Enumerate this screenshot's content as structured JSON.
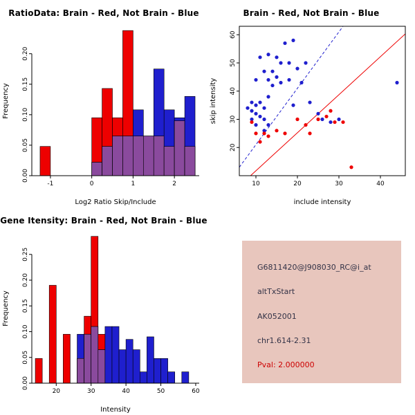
{
  "figure": {
    "background": "#ffffff"
  },
  "colors": {
    "red": "#ee0000",
    "blue": "#1f1fce",
    "overlap": "#8a4a9d",
    "axis": "#000000"
  },
  "chart_data": [
    {
      "id": "ratio-hist",
      "type": "bar",
      "subtype": "overlaid-histogram",
      "title": "RatioData: Brain - Red, Not Brain - Blue",
      "xlabel": "Log2 Ratio Skip/Include",
      "ylabel": "Frequency",
      "xlim": [
        -1.45,
        2.6
      ],
      "ylim": [
        0,
        0.245
      ],
      "bin_width": 0.25,
      "xticks": {
        "values": [
          -1,
          0,
          1,
          2
        ],
        "labels": [
          "-1",
          "0",
          "1",
          "2"
        ]
      },
      "yticks": {
        "values": [
          0,
          0.05,
          0.1,
          0.15,
          0.2
        ],
        "labels": [
          "0.00",
          "0.05",
          "0.10",
          "0.15",
          "0.20"
        ]
      },
      "legend": {
        "red": "Brain",
        "blue": "Not Brain"
      },
      "red_bins": [
        [
          -1.25,
          0.048
        ],
        [
          0,
          0.095
        ],
        [
          0.25,
          0.143
        ],
        [
          0.5,
          0.095
        ],
        [
          0.75,
          0.238
        ],
        [
          1,
          0.065
        ],
        [
          1.25,
          0.065
        ],
        [
          1.5,
          0.065
        ],
        [
          1.75,
          0.048
        ],
        [
          2,
          0.09
        ],
        [
          2.25,
          0.048
        ]
      ],
      "blue_bins": [
        [
          0,
          0.022
        ],
        [
          0.25,
          0.048
        ],
        [
          0.5,
          0.065
        ],
        [
          0.75,
          0.065
        ],
        [
          1,
          0.108
        ],
        [
          1.25,
          0.065
        ],
        [
          1.5,
          0.175
        ],
        [
          1.75,
          0.108
        ],
        [
          2,
          0.095
        ],
        [
          2.25,
          0.13
        ]
      ]
    },
    {
      "id": "intensity-scatter",
      "type": "scatter",
      "title": "Brain - Red, Not Brain - Blue",
      "xlabel": "include intensity",
      "ylabel": "skip intensity",
      "xlim": [
        6,
        46
      ],
      "ylim": [
        10,
        63
      ],
      "xticks": {
        "values": [
          10,
          20,
          30,
          40
        ],
        "labels": [
          "10",
          "20",
          "30",
          "40"
        ]
      },
      "yticks": {
        "values": [
          20,
          30,
          40,
          50,
          60
        ],
        "labels": [
          "20",
          "30",
          "40",
          "50",
          "60"
        ]
      },
      "legend": {
        "red": "Brain",
        "blue": "Not Brain"
      },
      "blue_points": [
        [
          8,
          34
        ],
        [
          9,
          30
        ],
        [
          9,
          33
        ],
        [
          9,
          36
        ],
        [
          10,
          28
        ],
        [
          10,
          32
        ],
        [
          10,
          35
        ],
        [
          10,
          44
        ],
        [
          11,
          31
        ],
        [
          11,
          36
        ],
        [
          11,
          52
        ],
        [
          12,
          26
        ],
        [
          12,
          30
        ],
        [
          12,
          34
        ],
        [
          12,
          47
        ],
        [
          13,
          28
        ],
        [
          13,
          38
        ],
        [
          13,
          44
        ],
        [
          13,
          53
        ],
        [
          14,
          42
        ],
        [
          14,
          47
        ],
        [
          15,
          45
        ],
        [
          15,
          52
        ],
        [
          16,
          43
        ],
        [
          16,
          50
        ],
        [
          17,
          57
        ],
        [
          18,
          44
        ],
        [
          18,
          50
        ],
        [
          19,
          35
        ],
        [
          19,
          58
        ],
        [
          20,
          48
        ],
        [
          21,
          43
        ],
        [
          22,
          50
        ],
        [
          23,
          36
        ],
        [
          25,
          32
        ],
        [
          26,
          30
        ],
        [
          28,
          29
        ],
        [
          30,
          30
        ],
        [
          44,
          43
        ]
      ],
      "red_points": [
        [
          9,
          29
        ],
        [
          10,
          25
        ],
        [
          11,
          22
        ],
        [
          12,
          25
        ],
        [
          13,
          24
        ],
        [
          15,
          26
        ],
        [
          17,
          25
        ],
        [
          20,
          30
        ],
        [
          22,
          28
        ],
        [
          23,
          25
        ],
        [
          25,
          30
        ],
        [
          27,
          31
        ],
        [
          28,
          33
        ],
        [
          29,
          29
        ],
        [
          31,
          29
        ],
        [
          33,
          13
        ]
      ],
      "lines": [
        {
          "x1": 6,
          "y1": 13,
          "x2": 31,
          "y2": 63,
          "color": "#1f1fce",
          "dashed": true
        },
        {
          "x1": 7,
          "y1": 7.7,
          "x2": 46,
          "y2": 60.3,
          "color": "#ee0000",
          "dashed": false
        }
      ]
    },
    {
      "id": "gene-hist",
      "type": "bar",
      "subtype": "overlaid-histogram",
      "title": "Gene Itensity: Brain - Red, Not Brain - Blue",
      "xlabel": "Intensity",
      "ylabel": "Frequency",
      "xlim": [
        13,
        61
      ],
      "ylim": [
        0,
        0.29
      ],
      "bin_width": 2,
      "xticks": {
        "values": [
          20,
          30,
          40,
          50,
          60
        ],
        "labels": [
          "20",
          "30",
          "40",
          "50",
          "60"
        ]
      },
      "yticks": {
        "values": [
          0,
          0.05,
          0.1,
          0.15,
          0.2,
          0.25
        ],
        "labels": [
          "0.00",
          "0.05",
          "0.10",
          "0.15",
          "0.20",
          "0.25"
        ]
      },
      "legend": {
        "red": "Brain",
        "blue": "Not Brain"
      },
      "red_bins": [
        [
          14,
          0.048
        ],
        [
          18,
          0.19
        ],
        [
          22,
          0.095
        ],
        [
          26,
          0.048
        ],
        [
          28,
          0.13
        ],
        [
          30,
          0.285
        ],
        [
          32,
          0.095
        ]
      ],
      "blue_bins": [
        [
          26,
          0.095
        ],
        [
          28,
          0.095
        ],
        [
          30,
          0.11
        ],
        [
          32,
          0.065
        ],
        [
          34,
          0.11
        ],
        [
          36,
          0.11
        ],
        [
          38,
          0.065
        ],
        [
          40,
          0.085
        ],
        [
          42,
          0.065
        ],
        [
          44,
          0.022
        ],
        [
          46,
          0.09
        ],
        [
          48,
          0.048
        ],
        [
          50,
          0.048
        ],
        [
          52,
          0.022
        ],
        [
          56,
          0.022
        ]
      ]
    }
  ],
  "info_box": {
    "probe_id": "G6811420@J908030_RC@i_at",
    "event_type": "altTxStart",
    "accession": "AK052001",
    "locus": "chr1.614-2.31",
    "pval": "Pval: 2.000000",
    "background": "#e8c6bd",
    "text_color": "#333347",
    "pval_color": "#cc0000"
  }
}
